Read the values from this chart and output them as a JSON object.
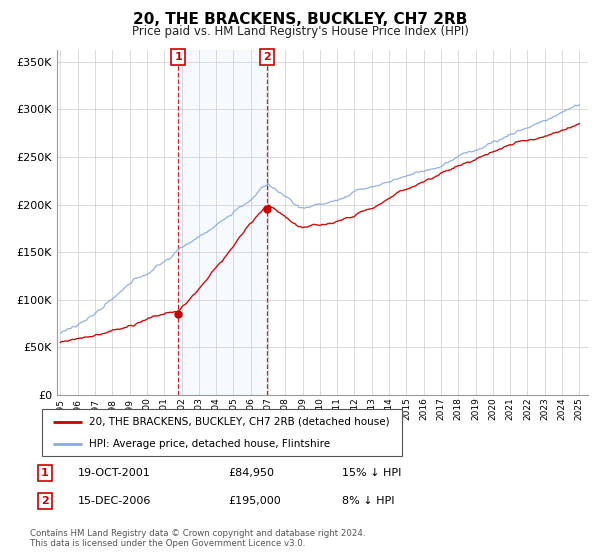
{
  "title": "20, THE BRACKENS, BUCKLEY, CH7 2RB",
  "subtitle": "Price paid vs. HM Land Registry's House Price Index (HPI)",
  "ytick_vals": [
    0,
    50000,
    100000,
    150000,
    200000,
    250000,
    300000,
    350000
  ],
  "ylim": [
    0,
    362000
  ],
  "x_start_year": 1995,
  "x_end_year": 2025,
  "sale1_date_num": 2001.8,
  "sale1_price": 84950,
  "sale1_label": "1",
  "sale1_text": "19-OCT-2001",
  "sale1_price_str": "£84,950",
  "sale1_hpi": "15% ↓ HPI",
  "sale2_date_num": 2006.95,
  "sale2_price": 195000,
  "sale2_label": "2",
  "sale2_text": "15-DEC-2006",
  "sale2_price_str": "£195,000",
  "sale2_hpi": "8% ↓ HPI",
  "line_color_property": "#cc0000",
  "line_color_hpi": "#88aadd",
  "shaded_region_color": "#ddeeff",
  "vline_color": "#cc0000",
  "legend_label_property": "20, THE BRACKENS, BUCKLEY, CH7 2RB (detached house)",
  "legend_label_hpi": "HPI: Average price, detached house, Flintshire",
  "footer1": "Contains HM Land Registry data © Crown copyright and database right 2024.",
  "footer2": "This data is licensed under the Open Government Licence v3.0."
}
